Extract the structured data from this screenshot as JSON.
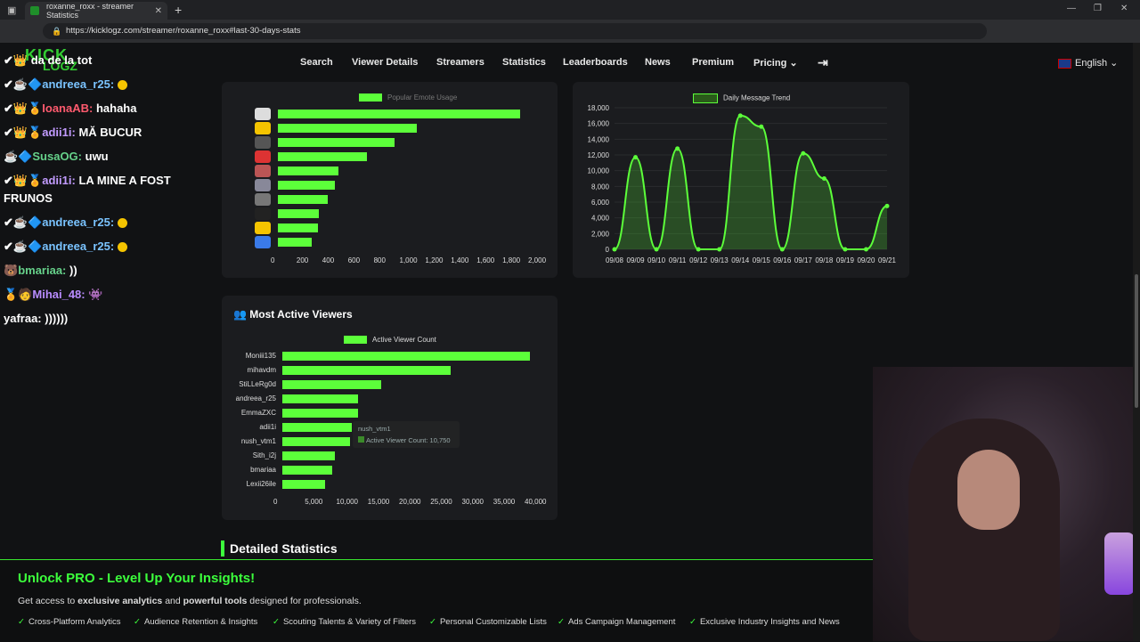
{
  "browser": {
    "tab_title": "roxanne_roxx - streamer Statistics",
    "url": "https://kicklogz.com/streamer/roxanne_roxx#last-30-days-stats"
  },
  "site": {
    "logo_top": "KICK",
    "logo_bottom": "LOGZ",
    "nav": [
      "Search",
      "Viewer Details",
      "Streamers",
      "Statistics",
      "Leaderboards",
      "News",
      "Premium",
      "Pricing"
    ],
    "language": "English"
  },
  "chat": [
    {
      "user": "",
      "text": "da de la tot"
    },
    {
      "user": "andreea_r25:",
      "text": ""
    },
    {
      "user": "IoanaAB:",
      "text": "hahaha"
    },
    {
      "user": "adii1i:",
      "text": "MĂ BUCUR"
    },
    {
      "user": "SusaOG:",
      "text": "uwu"
    },
    {
      "user": "adii1i:",
      "text": "LA MINE A FOST"
    },
    {
      "user": "",
      "text": "FRUNOS"
    },
    {
      "user": "andreea_r25:",
      "text": ""
    },
    {
      "user": "andreea_r25:",
      "text": ""
    },
    {
      "user": "bmariaa:",
      "text": "))"
    },
    {
      "user": "Mihai_48:",
      "text": ""
    },
    {
      "user": "yafraa:",
      "text": "))))))"
    }
  ],
  "emote_chart": {
    "legend": "Popular Emote Usage",
    "x_ticks": [
      "0",
      "200",
      "400",
      "600",
      "800",
      "1,000",
      "1,200",
      "1,400",
      "1,600",
      "1,800",
      "2,000"
    ]
  },
  "trend_chart": {
    "legend": "Daily Message Trend",
    "y_ticks": [
      "18,000",
      "16,000",
      "14,000",
      "12,000",
      "10,000",
      "8,000",
      "6,000",
      "4,000",
      "2,000",
      "0"
    ],
    "x_ticks": [
      "09/08",
      "09/09",
      "09/10",
      "09/11",
      "09/12",
      "09/13",
      "09/14",
      "09/15",
      "09/16",
      "09/17",
      "09/18",
      "09/19",
      "09/20",
      "09/21"
    ]
  },
  "viewers_card": {
    "title": "Most Active Viewers",
    "legend": "Active Viewer Count",
    "tooltip_name": "nush_vtm1",
    "tooltip_value": "Active Viewer Count: 10,750",
    "x_ticks": [
      "0",
      "5,000",
      "10,000",
      "15,000",
      "20,000",
      "25,000",
      "30,000",
      "35,000",
      "40,000"
    ]
  },
  "chart_data": [
    {
      "type": "bar",
      "legend": "Popular Emote Usage",
      "orientation": "horizontal",
      "values": [
        1880,
        1080,
        910,
        690,
        470,
        440,
        390,
        320,
        310,
        260
      ],
      "xlim": [
        0,
        2000
      ]
    },
    {
      "type": "line",
      "legend": "Daily Message Trend",
      "x": [
        "09/08",
        "09/09",
        "09/10",
        "09/11",
        "09/12",
        "09/13",
        "09/14",
        "09/15",
        "09/16",
        "09/17",
        "09/18",
        "09/19",
        "09/20",
        "09/21"
      ],
      "values": [
        0,
        11700,
        0,
        12800,
        0,
        0,
        17000,
        15600,
        0,
        12200,
        9000,
        0,
        0,
        5500
      ],
      "ylim": [
        0,
        18000
      ]
    },
    {
      "type": "bar",
      "legend": "Active Viewer Count",
      "orientation": "horizontal",
      "categories": [
        "Moniii135",
        "mihavdm",
        "StiLLeRg0d",
        "andreea_r25",
        "EmmaZXC",
        "adii1i",
        "nush_vtm1",
        "Sith_i2j",
        "bmariaa",
        "Lexii26ile"
      ],
      "values": [
        39500,
        26800,
        15700,
        12100,
        12100,
        11000,
        10750,
        8400,
        7900,
        6800
      ],
      "xlim": [
        0,
        40000
      ]
    }
  ],
  "section_title": "Detailed Statistics",
  "promo": {
    "title": "Unlock PRO - Level Up Your Insights!",
    "sub_pre": "Get access to ",
    "sub_b1": "exclusive analytics",
    "sub_mid": " and ",
    "sub_b2": "powerful tools",
    "sub_post": " designed for professionals.",
    "features": [
      "Cross-Platform Analytics",
      "Audience Retention & Insights",
      "Scouting Talents & Variety of Filters",
      "Personal Customizable Lists",
      "Ads Campaign Management",
      "Exclusive Industry Insights and News"
    ]
  }
}
